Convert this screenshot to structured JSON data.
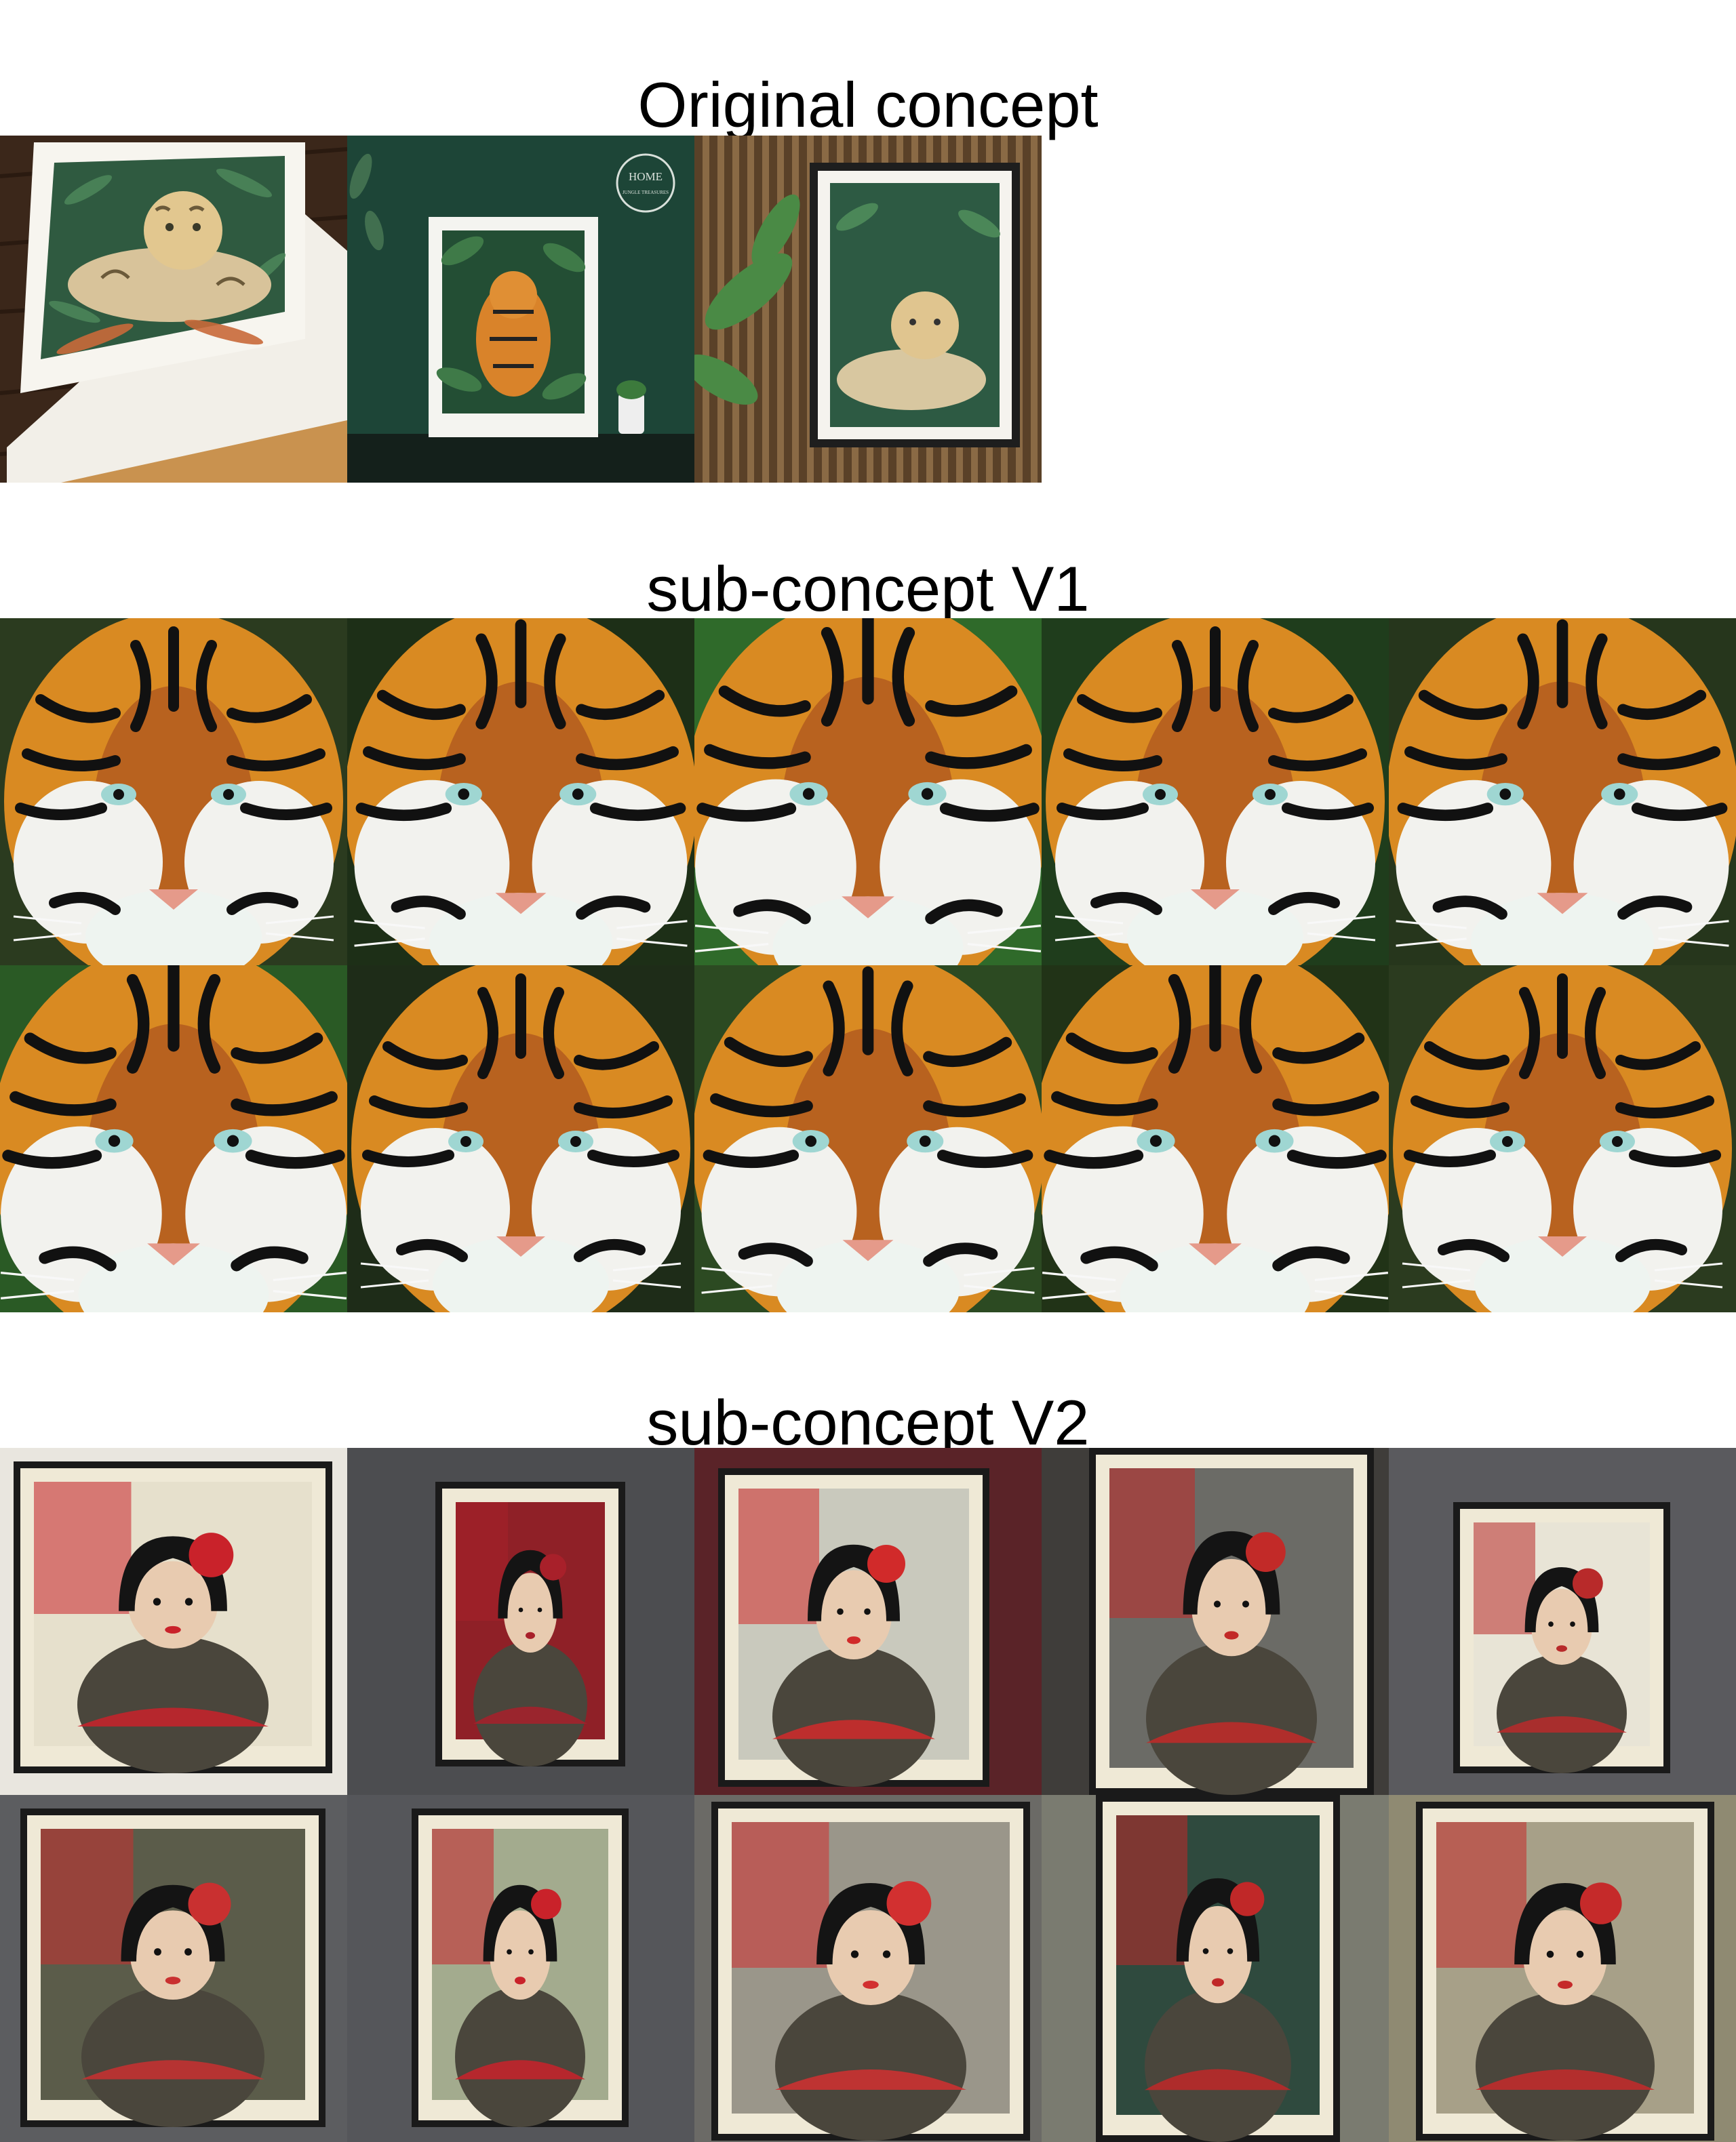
{
  "sections": [
    {
      "title": "Original concept"
    },
    {
      "title": "sub-concept V1"
    },
    {
      "title": "sub-concept V2"
    }
  ],
  "original": {
    "logo_word": "HOME",
    "logo_sub": "JUNGLE TREASURES"
  },
  "colors": {
    "jungle": "#1f4f38",
    "tiger_orange": "#d9832a",
    "poster_red": "#c9222a",
    "wall_gray": "#55565a",
    "paper": "#ece6d2"
  }
}
